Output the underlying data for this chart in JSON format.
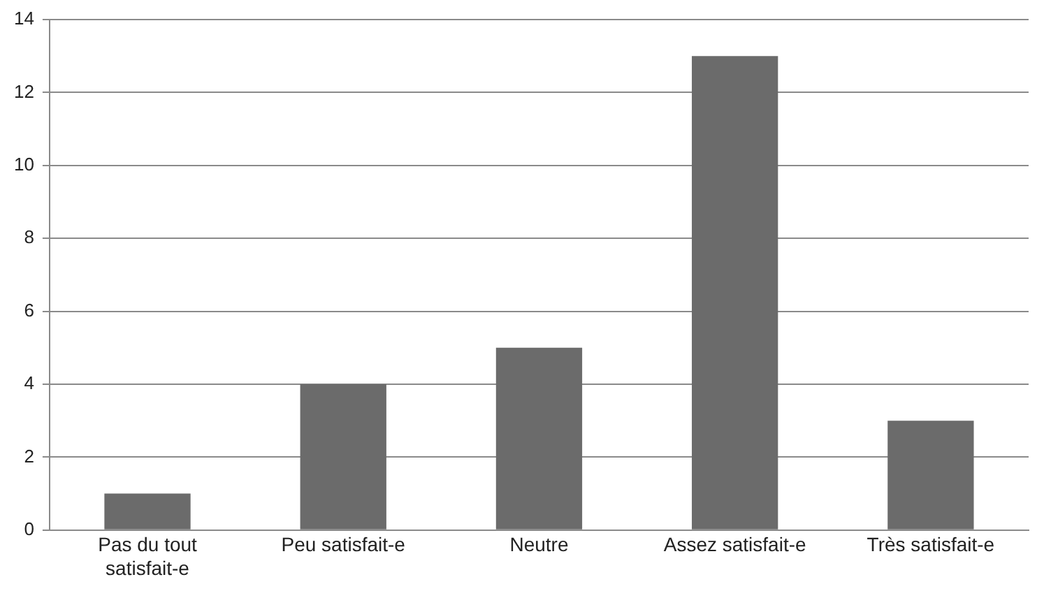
{
  "chart_data": {
    "type": "bar",
    "categories": [
      "Pas du tout satisfait-e",
      "Peu satisfait-e",
      "Neutre",
      "Assez satisfait-e",
      "Très satisfait-e"
    ],
    "values": [
      1,
      4,
      5,
      13,
      3
    ],
    "color": "#6b6b6b",
    "ylim": [
      0,
      14
    ],
    "yticks": [
      0,
      2,
      4,
      6,
      8,
      10,
      12,
      14
    ],
    "grid": "y"
  }
}
